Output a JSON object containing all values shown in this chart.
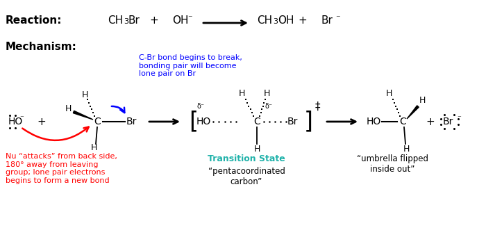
{
  "bg_color": "#ffffff",
  "reaction_label": "Reaction:",
  "mechanism_label": "Mechanism:",
  "blue_annotation": "C-Br bond begins to break,\nbonding pair will become\nlone pair on Br",
  "red_annotation": "Nu “attacks” from back side,\n180° away from leaving\ngroup; lone pair electrons\nbegins to form a new bond",
  "ts_label": "Transition State",
  "ts_sublabel": "“pentacoordinated\ncarbon”",
  "product_label": "“umbrella flipped\ninside out”",
  "figsize": [
    7.0,
    3.28
  ],
  "dpi": 100
}
